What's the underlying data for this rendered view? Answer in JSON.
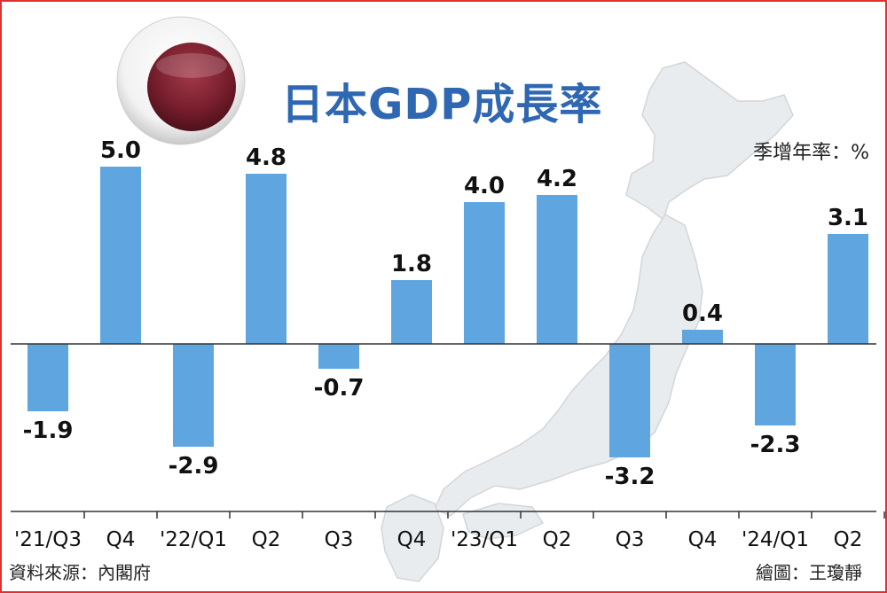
{
  "chart_data": {
    "type": "bar",
    "title": "日本GDP成長率",
    "unit_label": "季增年率：%",
    "categories": [
      "'21/Q3",
      "Q4",
      "'22/Q1",
      "Q2",
      "Q3",
      "Q4",
      "'23/Q1",
      "Q2",
      "Q3",
      "Q4",
      "'24/Q1",
      "Q2"
    ],
    "values": [
      -1.9,
      5.0,
      -2.9,
      4.8,
      -0.7,
      1.8,
      4.0,
      4.2,
      -3.2,
      0.4,
      -2.3,
      3.1
    ],
    "value_labels": [
      "-1.9",
      "5.0",
      "-2.9",
      "4.8",
      "-0.7",
      "1.8",
      "4.0",
      "4.2",
      "-3.2",
      "0.4",
      "-2.3",
      "3.1"
    ],
    "ylim": [
      -5,
      5.5
    ],
    "bar_color": "#5fa6e0",
    "grid": false,
    "legend": "none"
  },
  "footer": {
    "source": "資料來源：內閣府",
    "credit": "繪圖：王瓊靜"
  },
  "colors": {
    "title": "#2f67b2",
    "frame": "#e03030",
    "flag_disc": "#7a1f2e"
  }
}
